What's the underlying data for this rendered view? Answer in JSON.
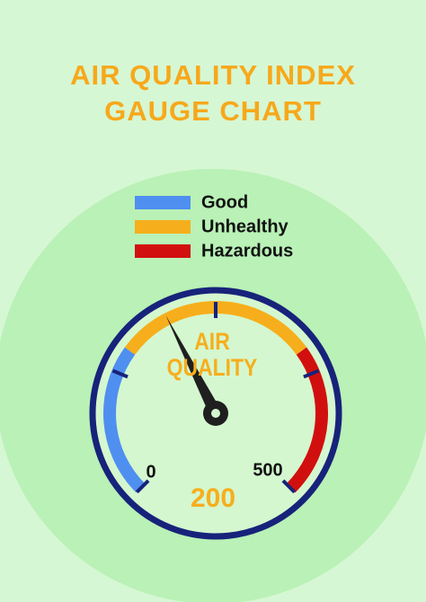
{
  "chart_data": {
    "type": "gauge",
    "title": "AIR QUALITY INDEX GAUGE CHART",
    "center_label": "AIR QUALITY",
    "min": 0,
    "max": 500,
    "value": 200,
    "ticks": [
      0,
      125,
      250,
      375,
      500
    ],
    "bands": [
      {
        "name": "Good",
        "color": "#4f8ff0",
        "from": 0,
        "to": 150
      },
      {
        "name": "Unhealthy",
        "color": "#f7ae1c",
        "from": 150,
        "to": 350
      },
      {
        "name": "Hazardous",
        "color": "#d20f0f",
        "from": 350,
        "to": 500
      }
    ],
    "value_color": "#f7ae1c",
    "needle_color": "#1f1f1f",
    "ring_color": "#17237a"
  }
}
